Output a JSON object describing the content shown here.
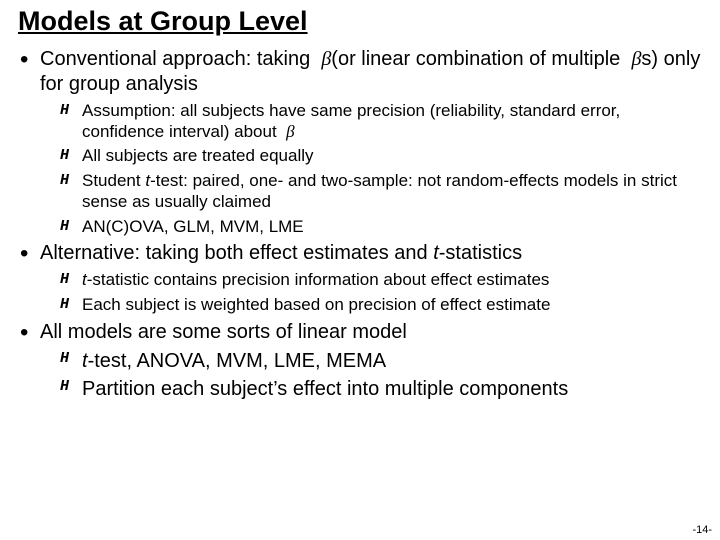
{
  "title": "Models at Group Level",
  "b1": {
    "pre": "Conventional approach: taking ",
    "mid": "(or linear combination of multiple ",
    "post": "s) only for group analysis",
    "s1a": "Assumption: all subjects have same precision (reliability, standard error, confidence interval) about ",
    "s2": "All subjects are treated equally",
    "s3a": "Student ",
    "s3b": "-test: paired, one- and two-sample: not random-effects models in strict sense as usually claimed",
    "s4": "AN(C)OVA, GLM, MVM, LME"
  },
  "b2": {
    "main_a": "Alternative: taking both effect estimates and ",
    "main_b": "-statistics",
    "s1a": "t",
    "s1b": "-statistic contains precision information about effect estimates",
    "s2": "Each subject is weighted based on precision of effect estimate"
  },
  "b3": {
    "main": "All models are some sorts of linear model",
    "s1a": "t",
    "s1b": "-test, ANOVA, MVM, LME, MEMA",
    "s2": "Partition each subject’s effect into multiple components"
  },
  "glyph": {
    "beta": "β",
    "t": "t"
  },
  "pagenum": "-14-"
}
